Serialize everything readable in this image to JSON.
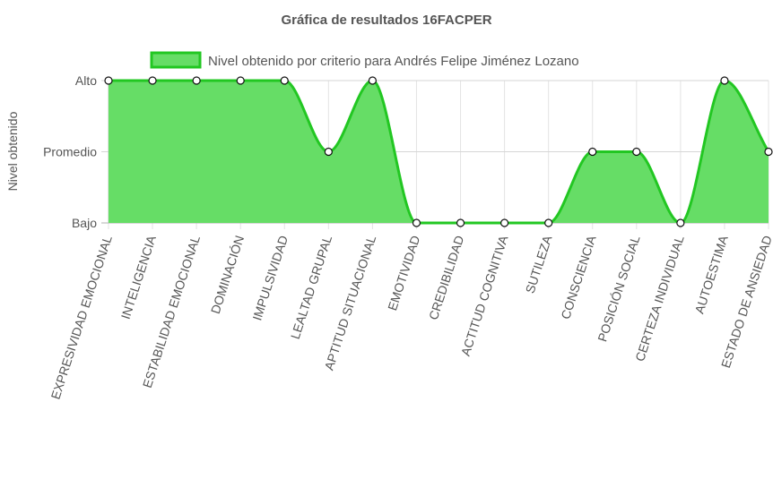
{
  "chart_data": {
    "type": "area",
    "title": "Gráfica de resultados 16FACPER",
    "ylabel": "Nivel obtenido",
    "xlabel": "",
    "y_levels": [
      "Bajo",
      "Promedio",
      "Alto"
    ],
    "ylim": [
      0,
      2
    ],
    "grid": true,
    "legend_position": "top",
    "categories": [
      "EXPRESIVIDAD EMOCIONAL",
      "INTELIGENCIA",
      "ESTABILIDAD EMOCIONAL",
      "DOMINACIÓN",
      "IMPULSIVIDAD",
      "LEALTAD GRUPAL",
      "APTITUD SITUACIONAL",
      "EMOTIVIDAD",
      "CREDIBILIDAD",
      "ACTITUD COGNITIVA",
      "SUTILEZA",
      "CONSCIENCIA",
      "POSICIÓN SOCIAL",
      "CERTEZA INDIVIDUAL",
      "AUTOESTIMA",
      "ESTADO DE ANSIEDAD"
    ],
    "series": [
      {
        "name": "Nivel obtenido por criterio para Andrés Felipe Jiménez Lozano",
        "values": [
          2,
          2,
          2,
          2,
          2,
          1,
          2,
          0,
          0,
          0,
          0,
          1,
          1,
          0,
          2,
          1
        ],
        "line_color": "#22c722",
        "fill_color": "#66dd66"
      }
    ]
  }
}
